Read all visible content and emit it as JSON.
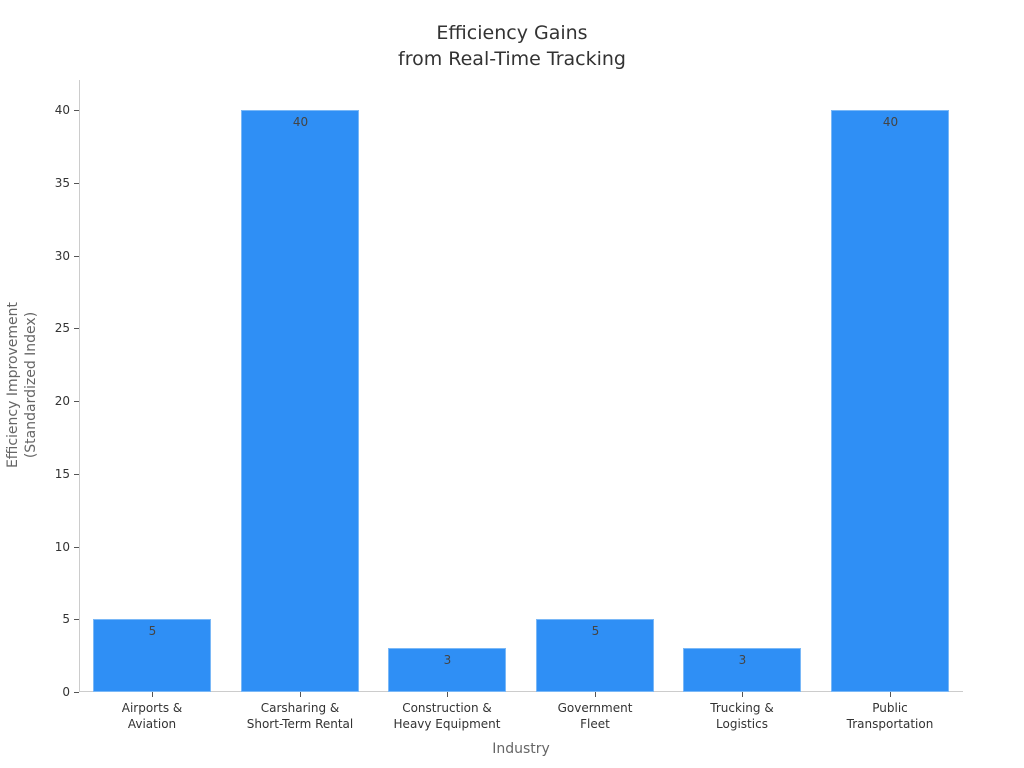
{
  "chart_data": {
    "type": "bar",
    "title": "Efficiency Gains from Real-Time Tracking",
    "title_lines": [
      "Efficiency Gains",
      "from Real-Time Tracking"
    ],
    "xlabel": "Industry",
    "ylabel": "Efficiency Improvement (Standardized Index)",
    "ylabel_lines": [
      "Efficiency Improvement",
      "(Standardized Index)"
    ],
    "categories": [
      "Airports & Aviation",
      "Carsharing & Short-Term Rental",
      "Construction & Heavy Equipment",
      "Government Fleet",
      "Trucking & Logistics",
      "Public Transportation"
    ],
    "category_lines": [
      [
        "Airports &",
        "Aviation"
      ],
      [
        "Carsharing &",
        "Short-Term Rental"
      ],
      [
        "Construction &",
        "Heavy Equipment"
      ],
      [
        "Government",
        "Fleet"
      ],
      [
        "Trucking &",
        "Logistics"
      ],
      [
        "Public",
        "Transportation"
      ]
    ],
    "values": [
      5,
      40,
      3,
      5,
      3,
      40
    ],
    "data_labels": [
      "5",
      "40",
      "3",
      "5",
      "3",
      "40"
    ],
    "yticks": [
      "0",
      "5",
      "10",
      "15",
      "20",
      "25",
      "30",
      "35",
      "40"
    ],
    "ylim": [
      0,
      42
    ],
    "grid": false,
    "legend": null,
    "bar_color": "#2f8ff5"
  }
}
